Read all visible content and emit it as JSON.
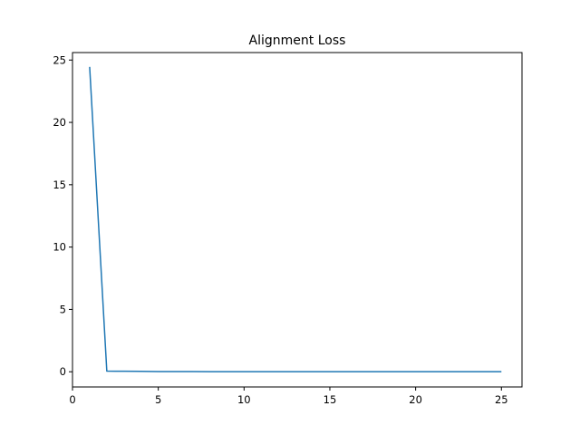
{
  "chart_data": {
    "type": "line",
    "title": "Alignment Loss",
    "xlabel": "",
    "ylabel": "",
    "xlim": [
      0,
      26.2
    ],
    "ylim": [
      -1.22,
      25.6
    ],
    "xticks": [
      0,
      5,
      10,
      15,
      20,
      25
    ],
    "yticks": [
      0,
      5,
      10,
      15,
      20,
      25
    ],
    "grid": false,
    "series": [
      {
        "color": "#1f77b4",
        "x": [
          1,
          2,
          3,
          4,
          5,
          6,
          7,
          8,
          9,
          10,
          11,
          12,
          13,
          14,
          15,
          16,
          17,
          18,
          19,
          20,
          21,
          22,
          23,
          24,
          25
        ],
        "y": [
          24.45,
          0.05,
          0.04,
          0.03,
          0.02,
          0.02,
          0.02,
          0.01,
          0.01,
          0.01,
          0.01,
          0.01,
          0.01,
          0.01,
          0.01,
          0.01,
          0.01,
          0.01,
          0.01,
          0.01,
          0.01,
          0.01,
          0.01,
          0.01,
          0.01
        ]
      }
    ]
  }
}
